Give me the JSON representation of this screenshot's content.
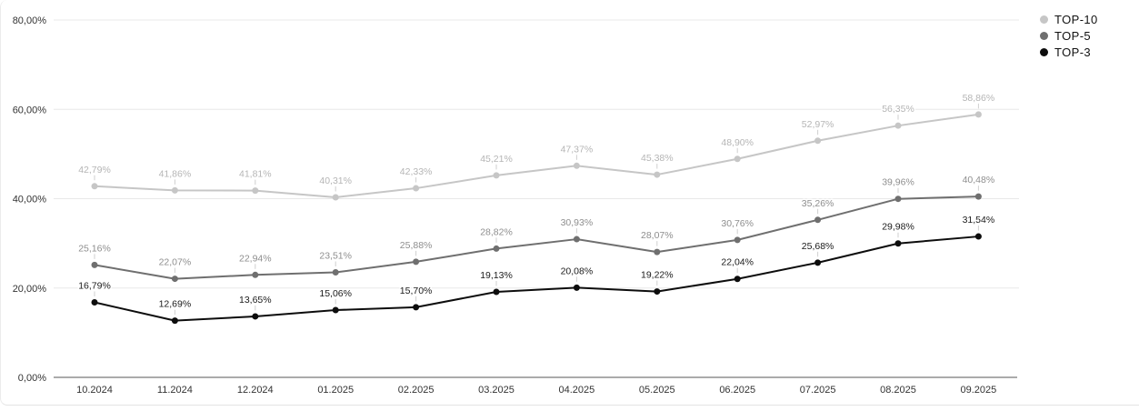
{
  "chart_data": {
    "type": "line",
    "title": "",
    "xlabel": "",
    "ylabel": "",
    "categories": [
      "10.2024",
      "11.2024",
      "12.2024",
      "01.2025",
      "02.2025",
      "03.2025",
      "04.2025",
      "05.2025",
      "06.2025",
      "07.2025",
      "08.2025",
      "09.2025"
    ],
    "series": [
      {
        "name": "TOP-10",
        "color": "#c6c6c6",
        "label_color": "#b5b5b5",
        "values": [
          42.79,
          41.86,
          41.81,
          40.31,
          42.33,
          45.21,
          47.37,
          45.38,
          48.9,
          52.97,
          56.35,
          58.86
        ]
      },
      {
        "name": "TOP-5",
        "color": "#6f6f6f",
        "label_color": "#8e8e8e",
        "values": [
          25.16,
          22.07,
          22.94,
          23.51,
          25.88,
          28.82,
          30.93,
          28.07,
          30.76,
          35.26,
          39.96,
          40.48
        ]
      },
      {
        "name": "TOP-3",
        "color": "#0d0d0d",
        "label_color": "#1a1a1a",
        "values": [
          16.79,
          12.69,
          13.65,
          15.06,
          15.7,
          19.13,
          20.08,
          19.22,
          22.04,
          25.68,
          29.98,
          31.54
        ]
      }
    ],
    "ylim": [
      0,
      80
    ],
    "yticks": [
      0,
      20,
      40,
      60,
      80
    ],
    "ytick_labels": [
      "0,00%",
      "20,00%",
      "40,00%",
      "60,00%",
      "80,00%"
    ],
    "decimals": 2,
    "decimal_separator": ",",
    "value_suffix": "%",
    "grid": "horizontal",
    "data_labels": true,
    "legend": {
      "position": "top-right",
      "entries": [
        "TOP-10",
        "TOP-5",
        "TOP-3"
      ]
    },
    "colors": {
      "gridline": "#e8e8e8",
      "axis_line": "#8f8f8f",
      "tick_label": "#333333",
      "leader_line": "#cfcfcf",
      "card_border": "#ececec",
      "background": "#ffffff"
    }
  }
}
